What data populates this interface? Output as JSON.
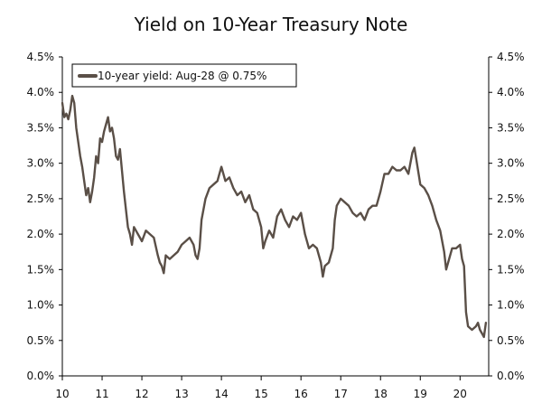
{
  "chart_data": {
    "type": "line",
    "title": "Yield on 10-Year Treasury Note",
    "xlabel": "",
    "ylabel": "",
    "x_ticks": [
      "10",
      "11",
      "12",
      "13",
      "14",
      "15",
      "16",
      "17",
      "18",
      "19",
      "20"
    ],
    "y_ticks_left": [
      "0.0%",
      "0.5%",
      "1.0%",
      "1.5%",
      "2.0%",
      "2.5%",
      "3.0%",
      "3.5%",
      "4.0%",
      "4.5%"
    ],
    "y_ticks_right": [
      "0.0%",
      "0.5%",
      "1.0%",
      "1.5%",
      "2.0%",
      "2.5%",
      "3.0%",
      "3.5%",
      "4.0%",
      "4.5%"
    ],
    "xlim": [
      2010,
      2020.72
    ],
    "ylim": [
      0,
      4.5
    ],
    "grid": false,
    "legend_position": "top-left",
    "series": [
      {
        "name": "10-year yield: Aug-28 @ 0.75%",
        "color": "#5a4f47",
        "x": [
          2010.0,
          2010.05,
          2010.1,
          2010.15,
          2010.2,
          2010.25,
          2010.3,
          2010.35,
          2010.4,
          2010.45,
          2010.5,
          2010.55,
          2010.6,
          2010.65,
          2010.7,
          2010.75,
          2010.8,
          2010.85,
          2010.9,
          2010.95,
          2011.0,
          2011.05,
          2011.1,
          2011.15,
          2011.2,
          2011.25,
          2011.3,
          2011.35,
          2011.4,
          2011.45,
          2011.5,
          2011.55,
          2011.6,
          2011.65,
          2011.7,
          2011.75,
          2011.8,
          2011.85,
          2011.9,
          2011.95,
          2012.0,
          2012.1,
          2012.2,
          2012.3,
          2012.4,
          2012.45,
          2012.5,
          2012.55,
          2012.6,
          2012.7,
          2012.8,
          2012.9,
          2013.0,
          2013.1,
          2013.2,
          2013.3,
          2013.35,
          2013.4,
          2013.45,
          2013.5,
          2013.6,
          2013.7,
          2013.8,
          2013.9,
          2014.0,
          2014.1,
          2014.2,
          2014.3,
          2014.4,
          2014.5,
          2014.6,
          2014.7,
          2014.8,
          2014.9,
          2015.0,
          2015.05,
          2015.1,
          2015.2,
          2015.3,
          2015.4,
          2015.5,
          2015.6,
          2015.7,
          2015.8,
          2015.9,
          2016.0,
          2016.1,
          2016.2,
          2016.3,
          2016.4,
          2016.5,
          2016.55,
          2016.6,
          2016.7,
          2016.8,
          2016.85,
          2016.9,
          2017.0,
          2017.1,
          2017.2,
          2017.3,
          2017.4,
          2017.5,
          2017.6,
          2017.7,
          2017.8,
          2017.9,
          2018.0,
          2018.1,
          2018.2,
          2018.3,
          2018.4,
          2018.5,
          2018.6,
          2018.7,
          2018.8,
          2018.85,
          2018.9,
          2019.0,
          2019.1,
          2019.2,
          2019.3,
          2019.4,
          2019.5,
          2019.6,
          2019.65,
          2019.7,
          2019.8,
          2019.9,
          2020.0,
          2020.05,
          2020.1,
          2020.15,
          2020.2,
          2020.3,
          2020.4,
          2020.45,
          2020.5,
          2020.55,
          2020.6,
          2020.65
        ],
        "y": [
          3.85,
          3.65,
          3.7,
          3.62,
          3.75,
          3.95,
          3.85,
          3.5,
          3.3,
          3.1,
          2.95,
          2.75,
          2.55,
          2.65,
          2.45,
          2.6,
          2.8,
          3.1,
          3.0,
          3.35,
          3.3,
          3.45,
          3.55,
          3.65,
          3.45,
          3.5,
          3.35,
          3.1,
          3.05,
          3.2,
          2.9,
          2.6,
          2.35,
          2.1,
          2.0,
          1.85,
          2.1,
          2.05,
          2.0,
          1.95,
          1.9,
          2.05,
          2.0,
          1.95,
          1.7,
          1.6,
          1.55,
          1.45,
          1.7,
          1.65,
          1.7,
          1.75,
          1.85,
          1.9,
          1.95,
          1.85,
          1.7,
          1.65,
          1.8,
          2.2,
          2.5,
          2.65,
          2.7,
          2.75,
          2.95,
          2.75,
          2.8,
          2.65,
          2.55,
          2.6,
          2.45,
          2.55,
          2.35,
          2.3,
          2.1,
          1.8,
          1.9,
          2.05,
          1.95,
          2.25,
          2.35,
          2.2,
          2.1,
          2.25,
          2.2,
          2.3,
          2.0,
          1.8,
          1.85,
          1.8,
          1.6,
          1.4,
          1.55,
          1.6,
          1.8,
          2.2,
          2.4,
          2.5,
          2.45,
          2.4,
          2.3,
          2.25,
          2.3,
          2.2,
          2.35,
          2.4,
          2.4,
          2.6,
          2.85,
          2.85,
          2.95,
          2.9,
          2.9,
          2.95,
          2.85,
          3.15,
          3.22,
          3.05,
          2.7,
          2.65,
          2.55,
          2.4,
          2.2,
          2.05,
          1.75,
          1.5,
          1.6,
          1.8,
          1.8,
          1.85,
          1.65,
          1.55,
          0.9,
          0.7,
          0.65,
          0.7,
          0.75,
          0.65,
          0.6,
          0.55,
          0.75
        ]
      }
    ]
  }
}
